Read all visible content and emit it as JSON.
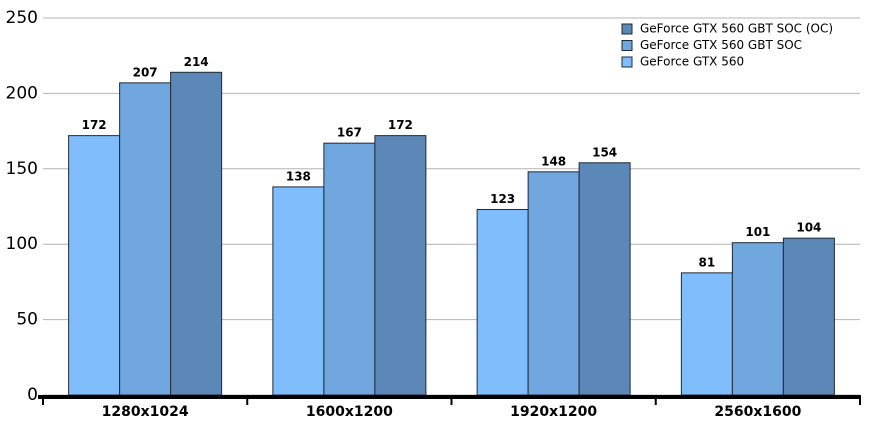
{
  "chart_data": {
    "type": "bar",
    "categories": [
      "1280x1024",
      "1600x1200",
      "1920x1200",
      "2560x1600"
    ],
    "series": [
      {
        "name": "GeForce GTX 560",
        "color": "#80bdfd",
        "values": [
          172,
          138,
          123,
          81
        ]
      },
      {
        "name": "GeForce GTX 560 GBT SOC",
        "color": "#6fa7de",
        "values": [
          207,
          167,
          148,
          101
        ]
      },
      {
        "name": "GeForce GTX 560 GBT SOC (OC)",
        "color": "#5b88b7",
        "values": [
          214,
          172,
          154,
          104
        ]
      }
    ],
    "ylim": [
      0,
      250
    ],
    "yticks": [
      0,
      50,
      100,
      150,
      200,
      250
    ],
    "grid": true,
    "legend": "top-right"
  }
}
